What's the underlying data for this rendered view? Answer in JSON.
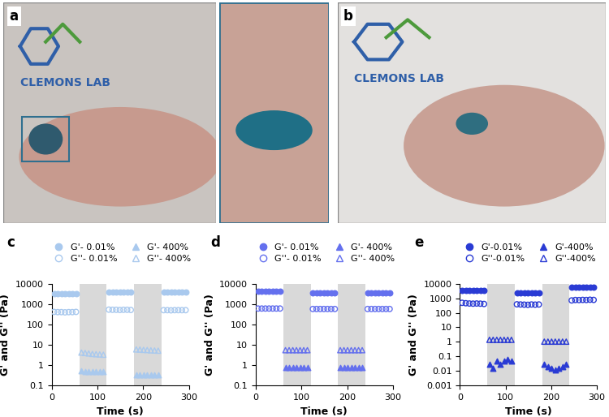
{
  "images": [
    {
      "label": "a",
      "text": "CLEMONS LAB"
    },
    {
      "label": "b",
      "text": "CLEMONS LAB"
    }
  ],
  "chart_data": [
    {
      "type": "scatter",
      "title": "c",
      "x_label": "Time (s)",
      "y_label": "G' and G'' (Pa)",
      "xlim": [
        0,
        300
      ],
      "xticks": [
        0,
        100,
        200,
        300
      ],
      "ylim": [
        0.1,
        10000
      ],
      "yticks": [
        0.1,
        1,
        10,
        100,
        1000,
        10000
      ],
      "log": "y",
      "legend": "upper center",
      "shaded": [
        [
          60,
          120
        ],
        [
          180,
          240
        ]
      ],
      "series": [
        {
          "name": "G'- 0.01%",
          "color": "#a9c9ee",
          "marker": "circle",
          "x": [
            5,
            13,
            21,
            29,
            37,
            45,
            53,
            125,
            133,
            141,
            149,
            157,
            165,
            173,
            245,
            253,
            261,
            269,
            277,
            285,
            293
          ],
          "values": [
            3200,
            3200,
            3200,
            3200,
            3200,
            3200,
            3200,
            4000,
            4000,
            4000,
            4000,
            4000,
            4000,
            4000,
            3900,
            3900,
            3900,
            3900,
            3900,
            3900,
            3900
          ]
        },
        {
          "name": "G''- 0.01%",
          "color": "#a9c9ee",
          "marker": "open_circle",
          "x": [
            5,
            13,
            21,
            29,
            37,
            45,
            53,
            125,
            133,
            141,
            149,
            157,
            165,
            173,
            245,
            253,
            261,
            269,
            277,
            285,
            293
          ],
          "values": [
            410,
            400,
            400,
            390,
            400,
            400,
            410,
            530,
            520,
            520,
            510,
            520,
            520,
            510,
            500,
            500,
            490,
            500,
            500,
            500,
            500
          ]
        },
        {
          "name": "G'- 400%",
          "color": "#a9c9ee",
          "marker": "triangle",
          "x": [
            65,
            73,
            81,
            89,
            97,
            105,
            113,
            185,
            193,
            201,
            209,
            217,
            225,
            233
          ],
          "values": [
            0.55,
            0.5,
            0.5,
            0.5,
            0.5,
            0.5,
            0.5,
            0.35,
            0.33,
            0.33,
            0.33,
            0.33,
            0.33,
            0.33
          ]
        },
        {
          "name": "G''- 400%",
          "color": "#a9c9ee",
          "marker": "open_triangle",
          "x": [
            65,
            73,
            81,
            89,
            97,
            105,
            113,
            185,
            193,
            201,
            209,
            217,
            225,
            233
          ],
          "values": [
            4.2,
            4.0,
            3.8,
            3.6,
            3.5,
            3.4,
            3.3,
            6.0,
            5.9,
            5.7,
            5.6,
            5.4,
            5.3,
            5.2
          ]
        }
      ]
    },
    {
      "type": "scatter",
      "title": "d",
      "x_label": "Time (s)",
      "y_label": "G' and G'' (Pa)",
      "xlim": [
        0,
        300
      ],
      "xticks": [
        0,
        100,
        200,
        300
      ],
      "ylim": [
        0.1,
        10000
      ],
      "yticks": [
        0.1,
        1,
        10,
        100,
        1000,
        10000
      ],
      "log": "y",
      "legend": "upper center",
      "shaded": [
        [
          60,
          120
        ],
        [
          180,
          240
        ]
      ],
      "series": [
        {
          "name": "G'- 0.01%",
          "color": "#6470ee",
          "marker": "circle",
          "x": [
            5,
            13,
            21,
            29,
            37,
            45,
            53,
            125,
            133,
            141,
            149,
            157,
            165,
            173,
            245,
            253,
            261,
            269,
            277,
            285,
            293
          ],
          "values": [
            4300,
            4300,
            4300,
            4300,
            4300,
            4300,
            4300,
            3500,
            3500,
            3500,
            3500,
            3500,
            3500,
            3500,
            3600,
            3600,
            3600,
            3600,
            3600,
            3600,
            3600
          ]
        },
        {
          "name": "G''- 0.01%",
          "color": "#6470ee",
          "marker": "open_circle",
          "x": [
            5,
            13,
            21,
            29,
            37,
            45,
            53,
            125,
            133,
            141,
            149,
            157,
            165,
            173,
            245,
            253,
            261,
            269,
            277,
            285,
            293
          ],
          "values": [
            600,
            600,
            600,
            600,
            600,
            600,
            600,
            570,
            570,
            570,
            570,
            570,
            570,
            570,
            570,
            570,
            570,
            570,
            570,
            570,
            570
          ]
        },
        {
          "name": "G'- 400%",
          "color": "#6470ee",
          "marker": "triangle",
          "x": [
            65,
            73,
            81,
            89,
            97,
            105,
            113,
            185,
            193,
            201,
            209,
            217,
            225,
            233
          ],
          "values": [
            0.75,
            0.75,
            0.75,
            0.75,
            0.75,
            0.75,
            0.75,
            0.75,
            0.75,
            0.75,
            0.75,
            0.75,
            0.75,
            0.75
          ]
        },
        {
          "name": "G''- 400%",
          "color": "#6470ee",
          "marker": "open_triangle",
          "x": [
            65,
            73,
            81,
            89,
            97,
            105,
            113,
            185,
            193,
            201,
            209,
            217,
            225,
            233
          ],
          "values": [
            5.5,
            5.5,
            5.5,
            5.5,
            5.5,
            5.5,
            5.5,
            5.5,
            5.5,
            5.5,
            5.5,
            5.5,
            5.5,
            5.5
          ]
        }
      ]
    },
    {
      "type": "scatter",
      "title": "e",
      "x_label": "Time (s)",
      "y_label": "G' and G'' (Pa)",
      "xlim": [
        0,
        300
      ],
      "xticks": [
        0,
        100,
        200,
        300
      ],
      "ylim": [
        0.001,
        10000
      ],
      "yticks": [
        0.001,
        0.01,
        0.1,
        1,
        10,
        100,
        1000,
        10000
      ],
      "log": "y",
      "legend": "upper center",
      "shaded": [
        [
          60,
          120
        ],
        [
          180,
          240
        ]
      ],
      "series": [
        {
          "name": "G'-0.01%",
          "color": "#2a3bd4",
          "marker": "circle",
          "x": [
            5,
            13,
            21,
            29,
            37,
            45,
            53,
            125,
            133,
            141,
            149,
            157,
            165,
            173,
            245,
            253,
            261,
            269,
            277,
            285,
            293
          ],
          "values": [
            3400,
            3400,
            3400,
            3400,
            3400,
            3400,
            3400,
            2300,
            2300,
            2300,
            2300,
            2300,
            2300,
            2300,
            6000,
            6000,
            6000,
            6000,
            6000,
            6000,
            6000
          ]
        },
        {
          "name": "G''-0.01%",
          "color": "#2a3bd4",
          "marker": "open_circle",
          "x": [
            5,
            13,
            21,
            29,
            37,
            45,
            53,
            125,
            133,
            141,
            149,
            157,
            165,
            173,
            245,
            253,
            261,
            269,
            277,
            285,
            293
          ],
          "values": [
            480,
            450,
            430,
            420,
            430,
            420,
            400,
            380,
            370,
            360,
            350,
            370,
            360,
            370,
            700,
            750,
            740,
            760,
            750,
            780,
            760
          ]
        },
        {
          "name": "G'-400%",
          "color": "#2a3bd4",
          "marker": "triangle",
          "x": [
            65,
            73,
            81,
            89,
            97,
            105,
            113,
            185,
            193,
            201,
            209,
            217,
            225,
            233
          ],
          "values": [
            0.03,
            0.015,
            0.05,
            0.03,
            0.05,
            0.06,
            0.05,
            0.03,
            0.02,
            0.015,
            0.012,
            0.015,
            0.02,
            0.03
          ]
        },
        {
          "name": "G''-400%",
          "color": "#2a3bd4",
          "marker": "open_triangle",
          "x": [
            65,
            73,
            81,
            89,
            97,
            105,
            113,
            185,
            193,
            201,
            209,
            217,
            225,
            233
          ],
          "values": [
            1.4,
            1.4,
            1.4,
            1.4,
            1.4,
            1.4,
            1.4,
            1.05,
            1.05,
            1.05,
            1.05,
            1.05,
            1.05,
            1.05
          ]
        }
      ]
    }
  ]
}
